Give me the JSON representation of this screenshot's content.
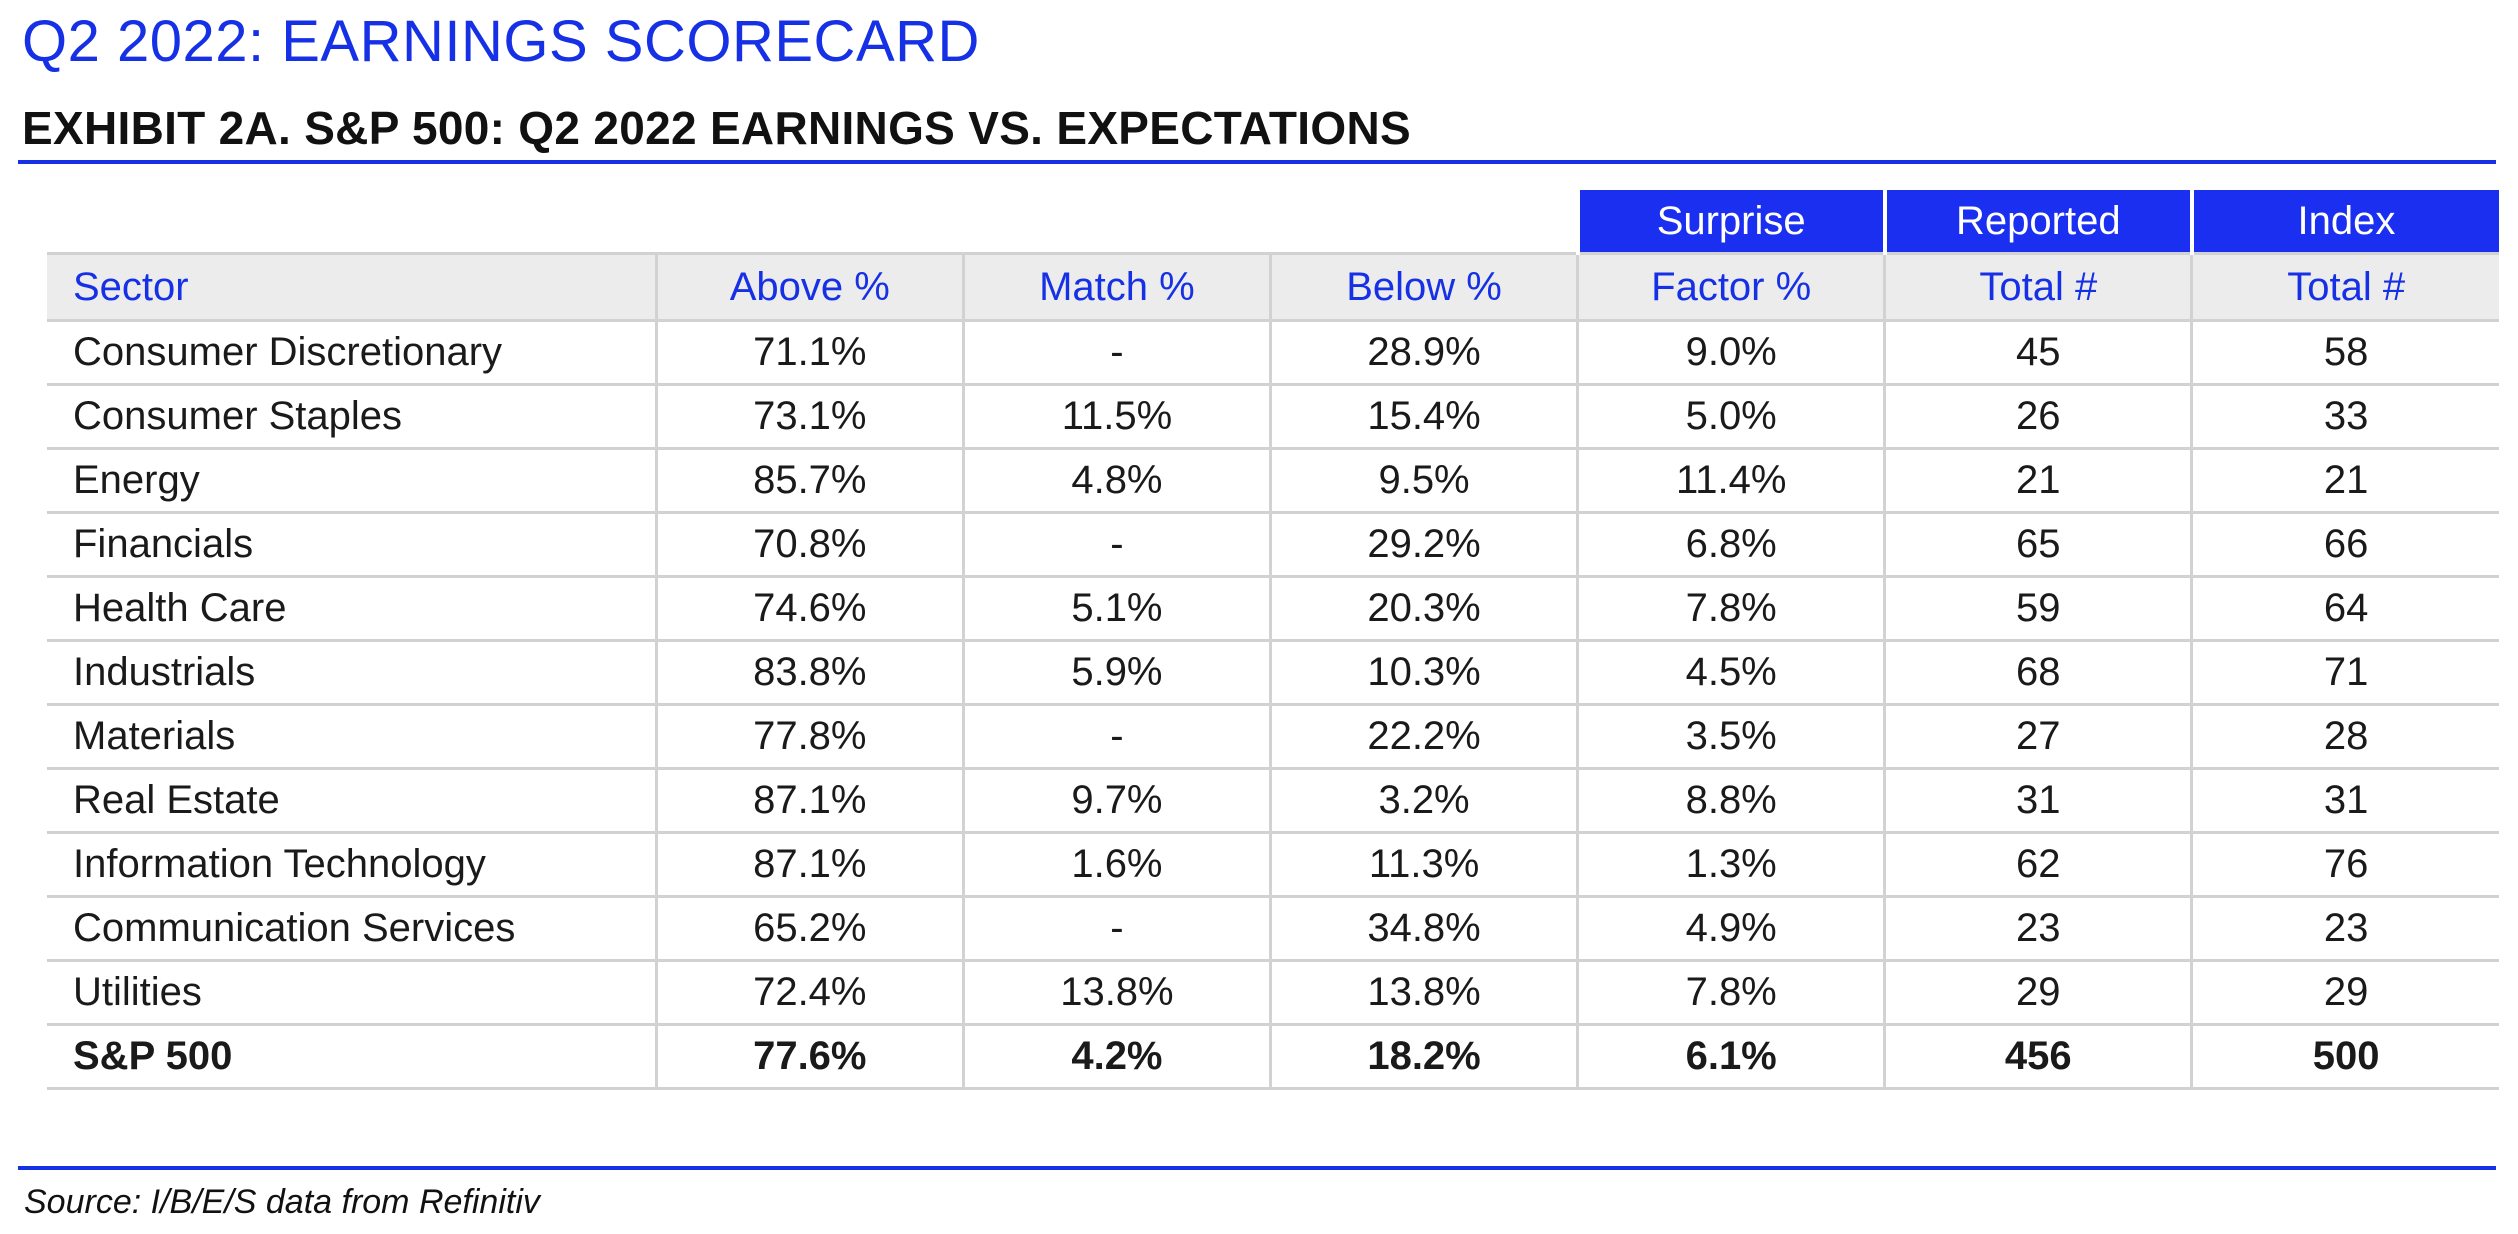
{
  "page_title": "Q2 2022: EARNINGS SCORECARD",
  "exhibit_title": "EXHIBIT 2A.  S&P 500: Q2 2022 EARNINGS VS. EXPECTATIONS",
  "colors": {
    "accent_blue": "#1630e6",
    "header_fill": "#1a2ff0",
    "header_row_bg": "#ececec",
    "grid": "#d2d2d2"
  },
  "table": {
    "top_headers": [
      "",
      "",
      "",
      "",
      "Surprise",
      "Reported",
      "Index"
    ],
    "headers": [
      "Sector",
      "Above %",
      "Match %",
      "Below %",
      "Factor %",
      "Total #",
      "Total #"
    ],
    "rows": [
      [
        "Consumer Discretionary",
        "71.1%",
        "-",
        "28.9%",
        "9.0%",
        "45",
        "58"
      ],
      [
        "Consumer Staples",
        "73.1%",
        "11.5%",
        "15.4%",
        "5.0%",
        "26",
        "33"
      ],
      [
        "Energy",
        "85.7%",
        "4.8%",
        "9.5%",
        "11.4%",
        "21",
        "21"
      ],
      [
        "Financials",
        "70.8%",
        "-",
        "29.2%",
        "6.8%",
        "65",
        "66"
      ],
      [
        "Health Care",
        "74.6%",
        "5.1%",
        "20.3%",
        "7.8%",
        "59",
        "64"
      ],
      [
        "Industrials",
        "83.8%",
        "5.9%",
        "10.3%",
        "4.5%",
        "68",
        "71"
      ],
      [
        "Materials",
        "77.8%",
        "-",
        "22.2%",
        "3.5%",
        "27",
        "28"
      ],
      [
        "Real Estate",
        "87.1%",
        "9.7%",
        "3.2%",
        "8.8%",
        "31",
        "31"
      ],
      [
        "Information Technology",
        "87.1%",
        "1.6%",
        "11.3%",
        "1.3%",
        "62",
        "76"
      ],
      [
        "Communication Services",
        "65.2%",
        "-",
        "34.8%",
        "4.9%",
        "23",
        "23"
      ],
      [
        "Utilities",
        "72.4%",
        "13.8%",
        "13.8%",
        "7.8%",
        "29",
        "29"
      ]
    ],
    "total": [
      "S&P 500",
      "77.6%",
      "4.2%",
      "18.2%",
      "6.1%",
      "456",
      "500"
    ]
  },
  "source": "Source: I/B/E/S data from Refinitiv"
}
